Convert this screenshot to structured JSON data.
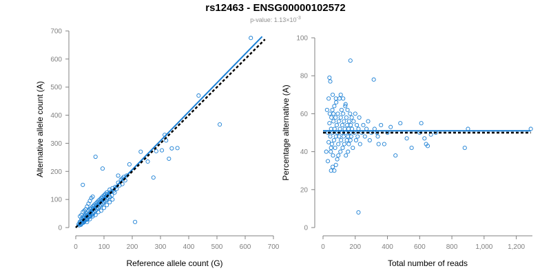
{
  "title": "rs12463 - ENSG00000102572",
  "subtitle_prefix": "p-value: 1.13×10",
  "subtitle_exp": "-3",
  "colors": {
    "points": "#1a7fd4",
    "fit_line": "#1a7fd4",
    "ref_line": "#000000",
    "axis": "#808080"
  },
  "chart_data": [
    {
      "type": "scatter",
      "xlabel": "Reference allele count (G)",
      "ylabel": "Alternative allele count (A)",
      "xlim": [
        0,
        700
      ],
      "ylim": [
        0,
        700
      ],
      "x_ticks": [
        0,
        100,
        200,
        300,
        400,
        500,
        600,
        700
      ],
      "y_ticks": [
        0,
        100,
        200,
        300,
        400,
        500,
        600,
        700
      ],
      "x_tick_labels": [
        "0",
        "100",
        "200",
        "300",
        "400",
        "500",
        "600",
        "700"
      ],
      "y_tick_labels": [
        "0",
        "100",
        "200",
        "300",
        "400",
        "500",
        "600",
        "700"
      ],
      "fit_line": [
        [
          0,
          0
        ],
        [
          660,
          680
        ]
      ],
      "reference_line": [
        [
          0,
          0
        ],
        [
          670,
          670
        ]
      ],
      "points": [
        [
          10,
          12
        ],
        [
          12,
          8
        ],
        [
          14,
          20
        ],
        [
          15,
          15
        ],
        [
          18,
          22
        ],
        [
          20,
          14
        ],
        [
          20,
          30
        ],
        [
          22,
          25
        ],
        [
          25,
          18
        ],
        [
          25,
          35
        ],
        [
          28,
          28
        ],
        [
          30,
          40
        ],
        [
          30,
          22
        ],
        [
          32,
          35
        ],
        [
          35,
          30
        ],
        [
          35,
          45
        ],
        [
          38,
          40
        ],
        [
          40,
          28
        ],
        [
          40,
          50
        ],
        [
          42,
          45
        ],
        [
          45,
          38
        ],
        [
          45,
          60
        ],
        [
          48,
          50
        ],
        [
          50,
          42
        ],
        [
          50,
          65
        ],
        [
          52,
          55
        ],
        [
          55,
          48
        ],
        [
          55,
          70
        ],
        [
          58,
          60
        ],
        [
          60,
          52
        ],
        [
          60,
          75
        ],
        [
          62,
          68
        ],
        [
          65,
          55
        ],
        [
          65,
          80
        ],
        [
          68,
          70
        ],
        [
          70,
          60
        ],
        [
          70,
          85
        ],
        [
          72,
          78
        ],
        [
          75,
          65
        ],
        [
          75,
          90
        ],
        [
          78,
          82
        ],
        [
          80,
          70
        ],
        [
          80,
          95
        ],
        [
          82,
          88
        ],
        [
          85,
          75
        ],
        [
          85,
          100
        ],
        [
          88,
          92
        ],
        [
          90,
          80
        ],
        [
          90,
          105
        ],
        [
          92,
          98
        ],
        [
          95,
          85
        ],
        [
          95,
          110
        ],
        [
          98,
          100
        ],
        [
          100,
          90
        ],
        [
          100,
          115
        ],
        [
          102,
          108
        ],
        [
          105,
          95
        ],
        [
          105,
          120
        ],
        [
          108,
          112
        ],
        [
          110,
          100
        ],
        [
          110,
          125
        ],
        [
          112,
          118
        ],
        [
          115,
          105
        ],
        [
          118,
          122
        ],
        [
          120,
          110
        ],
        [
          120,
          135
        ],
        [
          125,
          128
        ],
        [
          128,
          115
        ],
        [
          130,
          140
        ],
        [
          135,
          132
        ],
        [
          138,
          125
        ],
        [
          140,
          145
        ],
        [
          145,
          138
        ],
        [
          150,
          160
        ],
        [
          155,
          150
        ],
        [
          160,
          170
        ],
        [
          165,
          155
        ],
        [
          170,
          180
        ],
        [
          175,
          168
        ],
        [
          180,
          185
        ],
        [
          15,
          40
        ],
        [
          20,
          45
        ],
        [
          25,
          55
        ],
        [
          30,
          60
        ],
        [
          35,
          65
        ],
        [
          40,
          75
        ],
        [
          45,
          85
        ],
        [
          50,
          95
        ],
        [
          55,
          105
        ],
        [
          60,
          110
        ],
        [
          40,
          20
        ],
        [
          50,
          30
        ],
        [
          60,
          40
        ],
        [
          70,
          45
        ],
        [
          80,
          55
        ],
        [
          90,
          60
        ],
        [
          100,
          70
        ],
        [
          110,
          80
        ],
        [
          120,
          90
        ],
        [
          130,
          100
        ],
        [
          18,
          10
        ],
        [
          22,
          15
        ],
        [
          28,
          18
        ],
        [
          32,
          25
        ],
        [
          38,
          30
        ],
        [
          42,
          32
        ],
        [
          48,
          38
        ],
        [
          52,
          42
        ],
        [
          58,
          45
        ],
        [
          62,
          50
        ],
        [
          25,
          152
        ],
        [
          70,
          252
        ],
        [
          95,
          210
        ],
        [
          190,
          225
        ],
        [
          210,
          20
        ],
        [
          230,
          270
        ],
        [
          255,
          235
        ],
        [
          275,
          178
        ],
        [
          285,
          272
        ],
        [
          305,
          275
        ],
        [
          315,
          330
        ],
        [
          320,
          310
        ],
        [
          330,
          245
        ],
        [
          340,
          282
        ],
        [
          360,
          283
        ],
        [
          435,
          470
        ],
        [
          510,
          367
        ],
        [
          620,
          675
        ],
        [
          150,
          185
        ],
        [
          165,
          175
        ]
      ]
    },
    {
      "type": "scatter",
      "xlabel": "Total number of reads",
      "ylabel": "Percentage alternative (A)",
      "xlim": [
        0,
        1300
      ],
      "ylim": [
        0,
        100
      ],
      "x_ticks": [
        0,
        200,
        400,
        600,
        800,
        1000,
        1200
      ],
      "y_ticks": [
        0,
        20,
        40,
        60,
        80,
        100
      ],
      "x_tick_labels": [
        "0",
        "200",
        "400",
        "600",
        "800",
        "1,000",
        "1,200"
      ],
      "y_tick_labels": [
        "0",
        "20",
        "40",
        "60",
        "80",
        "100"
      ],
      "fit_line": [
        [
          0,
          51
        ],
        [
          1290,
          51
        ]
      ],
      "reference_line": [
        [
          0,
          50
        ],
        [
          1290,
          50
        ]
      ],
      "points": [
        [
          30,
          50
        ],
        [
          35,
          45
        ],
        [
          40,
          55
        ],
        [
          42,
          60
        ],
        [
          45,
          48
        ],
        [
          48,
          40
        ],
        [
          50,
          52
        ],
        [
          52,
          58
        ],
        [
          55,
          44
        ],
        [
          58,
          62
        ],
        [
          60,
          50
        ],
        [
          62,
          38
        ],
        [
          65,
          56
        ],
        [
          68,
          46
        ],
        [
          70,
          64
        ],
        [
          72,
          52
        ],
        [
          75,
          42
        ],
        [
          78,
          58
        ],
        [
          80,
          48
        ],
        [
          82,
          66
        ],
        [
          85,
          54
        ],
        [
          88,
          36
        ],
        [
          90,
          50
        ],
        [
          92,
          60
        ],
        [
          95,
          44
        ],
        [
          98,
          56
        ],
        [
          100,
          48
        ],
        [
          102,
          68
        ],
        [
          105,
          52
        ],
        [
          108,
          40
        ],
        [
          110,
          58
        ],
        [
          112,
          46
        ],
        [
          115,
          62
        ],
        [
          118,
          50
        ],
        [
          120,
          54
        ],
        [
          122,
          42
        ],
        [
          125,
          60
        ],
        [
          128,
          48
        ],
        [
          130,
          56
        ],
        [
          132,
          44
        ],
        [
          135,
          52
        ],
        [
          138,
          64
        ],
        [
          140,
          50
        ],
        [
          142,
          38
        ],
        [
          145,
          58
        ],
        [
          148,
          46
        ],
        [
          150,
          54
        ],
        [
          152,
          62
        ],
        [
          155,
          48
        ],
        [
          158,
          52
        ],
        [
          160,
          44
        ],
        [
          162,
          56
        ],
        [
          165,
          50
        ],
        [
          168,
          60
        ],
        [
          170,
          46
        ],
        [
          172,
          54
        ],
        [
          175,
          48
        ],
        [
          178,
          58
        ],
        [
          180,
          52
        ],
        [
          185,
          42
        ],
        [
          190,
          56
        ],
        [
          195,
          50
        ],
        [
          200,
          60
        ],
        [
          205,
          46
        ],
        [
          210,
          54
        ],
        [
          215,
          48
        ],
        [
          220,
          52
        ],
        [
          225,
          58
        ],
        [
          230,
          44
        ],
        [
          240,
          50
        ],
        [
          250,
          54
        ],
        [
          260,
          48
        ],
        [
          270,
          52
        ],
        [
          280,
          56
        ],
        [
          290,
          46
        ],
        [
          300,
          50
        ],
        [
          320,
          52
        ],
        [
          340,
          48
        ],
        [
          360,
          54
        ],
        [
          380,
          44
        ],
        [
          40,
          79
        ],
        [
          45,
          77
        ],
        [
          50,
          30
        ],
        [
          60,
          32
        ],
        [
          70,
          30
        ],
        [
          80,
          33
        ],
        [
          30,
          35
        ],
        [
          25,
          62
        ],
        [
          20,
          40
        ],
        [
          35,
          68
        ],
        [
          110,
          70
        ],
        [
          125,
          68
        ],
        [
          140,
          65
        ],
        [
          60,
          70
        ],
        [
          80,
          68
        ],
        [
          170,
          88
        ],
        [
          220,
          8
        ],
        [
          315,
          78
        ],
        [
          335,
          50
        ],
        [
          345,
          44
        ],
        [
          420,
          53
        ],
        [
          450,
          38
        ],
        [
          480,
          55
        ],
        [
          520,
          47
        ],
        [
          550,
          42
        ],
        [
          600,
          50
        ],
        [
          610,
          55
        ],
        [
          630,
          47
        ],
        [
          640,
          44
        ],
        [
          650,
          43
        ],
        [
          670,
          49
        ],
        [
          880,
          42
        ],
        [
          900,
          52
        ],
        [
          1290,
          52
        ],
        [
          700,
          50
        ],
        [
          400,
          50
        ],
        [
          50,
          42
        ],
        [
          65,
          60
        ],
        [
          95,
          38
        ],
        [
          155,
          40
        ]
      ]
    }
  ]
}
